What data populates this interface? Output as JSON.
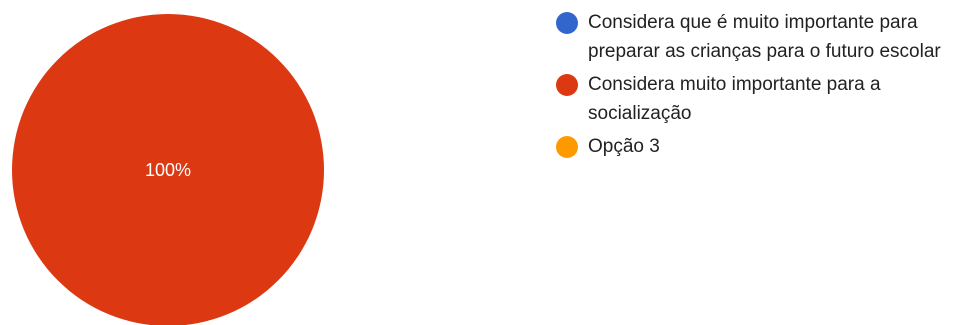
{
  "chart_data": {
    "type": "pie",
    "categories": [
      "Considera que é muito importante para preparar as crianças para o futuro escolar",
      "Considera muito importante para a socialização",
      "Opção 3"
    ],
    "values": [
      0,
      100,
      0
    ],
    "colors": [
      "#3366cc",
      "#dc3912",
      "#ff9900"
    ],
    "slice_labels": [
      "",
      "100%",
      ""
    ],
    "legend_position": "right"
  }
}
